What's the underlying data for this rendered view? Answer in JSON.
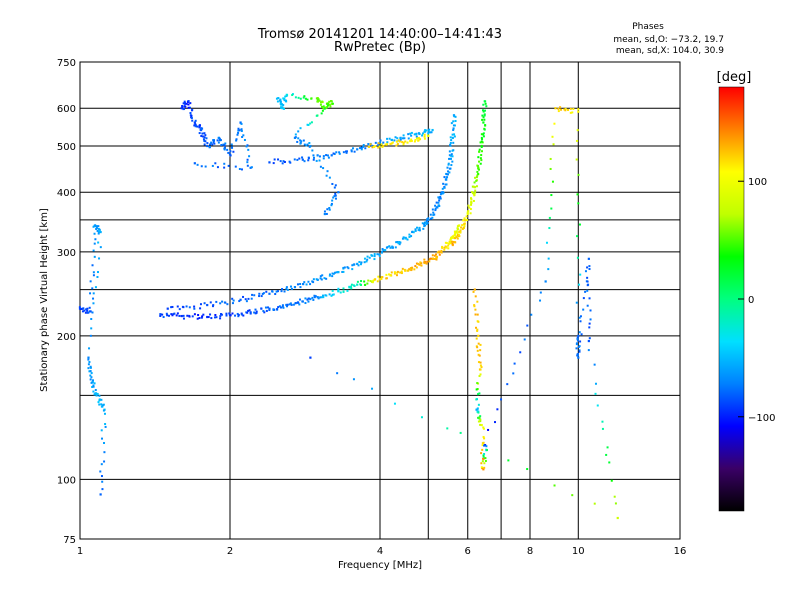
{
  "chart_data": {
    "type": "scatter",
    "title": "Tromsø 20141201 14:40:00–14:41:43",
    "subtitle": "RwPretec (Bp)",
    "xlabel": "Frequency [MHz]",
    "ylabel": "Stationary phase Virtual Height [km]",
    "x_scale": "log",
    "y_scale": "log",
    "xlim": [
      1,
      16
    ],
    "ylim": [
      75,
      750
    ],
    "x_ticks": [
      1,
      2,
      4,
      6,
      8,
      10,
      16
    ],
    "x_tick_labels": [
      "1",
      "2",
      "4",
      "6",
      "8",
      "10",
      "16"
    ],
    "x_grid_minor": [
      5,
      7
    ],
    "y_ticks": [
      75,
      100,
      200,
      300,
      400,
      500,
      600,
      750
    ],
    "y_tick_labels": [
      "75",
      "100",
      "200",
      "300",
      "400",
      "500",
      "600",
      "750"
    ],
    "y_grid_minor": [
      150,
      250,
      350
    ],
    "grid": true,
    "stats": {
      "heading": "Phases",
      "line1": "mean, sd,O: −73.2, 19.7",
      "line2": "mean, sd,X: 104.0, 30.9"
    },
    "colorbar": {
      "label": "[deg]",
      "range": [
        -180,
        180
      ],
      "ticks": [
        100,
        0,
        -100
      ],
      "tick_labels": [
        "100",
        "0",
        "−100"
      ],
      "colors": [
        "#000000",
        "#3a0066",
        "#0000ff",
        "#0080ff",
        "#00e0ff",
        "#00ff80",
        "#00ff00",
        "#c0ff00",
        "#ffff00",
        "#ff8000",
        "#ff0000"
      ]
    },
    "series": [
      {
        "trace": "lower-main",
        "points": [
          [
            1.45,
            222,
            -85
          ],
          [
            1.6,
            220,
            -95
          ],
          [
            1.8,
            219,
            -95
          ],
          [
            2.0,
            221,
            -90
          ],
          [
            2.2,
            224,
            -85
          ],
          [
            2.4,
            228,
            -80
          ],
          [
            2.6,
            232,
            -78
          ],
          [
            2.8,
            236,
            -75
          ],
          [
            3.0,
            241,
            -70
          ],
          [
            3.3,
            248,
            -30
          ],
          [
            3.6,
            256,
            -20
          ],
          [
            3.9,
            262,
            110
          ],
          [
            4.2,
            268,
            120
          ],
          [
            4.5,
            274,
            125
          ],
          [
            4.8,
            282,
            130
          ],
          [
            5.1,
            290,
            135
          ],
          [
            5.3,
            300,
            130
          ],
          [
            5.5,
            312,
            110
          ],
          [
            5.65,
            325,
            100
          ],
          [
            5.75,
            340,
            90
          ]
        ]
      },
      {
        "trace": "upper-main",
        "points": [
          [
            1.5,
            228,
            -90
          ],
          [
            1.8,
            232,
            -85
          ],
          [
            2.1,
            238,
            -80
          ],
          [
            2.4,
            245,
            -78
          ],
          [
            2.7,
            253,
            -70
          ],
          [
            3.0,
            262,
            -65
          ],
          [
            3.3,
            272,
            -60
          ],
          [
            3.6,
            283,
            -60
          ],
          [
            3.9,
            294,
            -55
          ],
          [
            4.2,
            306,
            -60
          ],
          [
            4.5,
            320,
            -55
          ],
          [
            4.8,
            336,
            -60
          ],
          [
            5.0,
            350,
            -65
          ],
          [
            5.2,
            372,
            -70
          ],
          [
            5.35,
            400,
            -68
          ],
          [
            5.45,
            430,
            -65
          ],
          [
            5.55,
            470,
            -60
          ],
          [
            5.6,
            520,
            -55
          ],
          [
            5.63,
            580,
            -60
          ]
        ]
      },
      {
        "trace": "x-branch",
        "points": [
          [
            5.6,
            310,
            130
          ],
          [
            5.8,
            330,
            120
          ],
          [
            5.95,
            350,
            110
          ],
          [
            6.1,
            380,
            90
          ],
          [
            6.2,
            410,
            70
          ],
          [
            6.3,
            450,
            50
          ],
          [
            6.4,
            500,
            40
          ],
          [
            6.45,
            560,
            30
          ],
          [
            6.5,
            620,
            20
          ]
        ]
      },
      {
        "trace": "f-layer-echo",
        "points": [
          [
            2.4,
            462,
            -85
          ],
          [
            2.8,
            468,
            -80
          ],
          [
            3.2,
            478,
            -75
          ],
          [
            3.6,
            492,
            -70
          ],
          [
            4.0,
            508,
            -65
          ],
          [
            4.4,
            520,
            -60
          ],
          [
            4.8,
            530,
            -55
          ],
          [
            5.1,
            540,
            -50
          ]
        ]
      },
      {
        "trace": "f-layer-echo-x",
        "points": [
          [
            3.8,
            498,
            120
          ],
          [
            4.2,
            505,
            115
          ],
          [
            4.6,
            512,
            110
          ],
          [
            5.0,
            525,
            105
          ]
        ]
      },
      {
        "trace": "low-frequency",
        "points": [
          [
            1.0,
            228,
            -90
          ],
          [
            1.05,
            225,
            -85
          ],
          [
            1.07,
            340,
            -60
          ],
          [
            1.1,
            330,
            -55
          ],
          [
            1.04,
            180,
            -70
          ],
          [
            1.06,
            160,
            -60
          ],
          [
            1.08,
            150,
            -55
          ],
          [
            1.12,
            140,
            -50
          ],
          [
            1.1,
            93,
            -80
          ]
        ]
      },
      {
        "trace": "cluster-2mhz",
        "points": [
          [
            1.6,
            600,
            -95
          ],
          [
            1.65,
            620,
            -100
          ],
          [
            1.7,
            560,
            -90
          ],
          [
            1.75,
            540,
            -85
          ],
          [
            1.8,
            500,
            -80
          ],
          [
            1.9,
            520,
            -75
          ],
          [
            2.0,
            480,
            -80
          ],
          [
            2.1,
            560,
            -70
          ],
          [
            2.2,
            450,
            -75
          ],
          [
            1.7,
            460,
            -80
          ]
        ]
      },
      {
        "trace": "cluster-3mhz",
        "points": [
          [
            2.5,
            630,
            -50
          ],
          [
            2.55,
            600,
            -45
          ],
          [
            2.6,
            640,
            -40
          ],
          [
            3.0,
            630,
            60
          ],
          [
            3.1,
            600,
            55
          ],
          [
            3.2,
            620,
            50
          ],
          [
            2.7,
            520,
            -70
          ],
          [
            2.9,
            500,
            -65
          ],
          [
            3.3,
            400,
            -75
          ],
          [
            3.1,
            360,
            -70
          ]
        ]
      },
      {
        "trace": "isolated",
        "points": [
          [
            6.2,
            250,
            130
          ],
          [
            6.3,
            200,
            120
          ],
          [
            6.35,
            170,
            125
          ],
          [
            6.25,
            140,
            -60
          ],
          [
            6.4,
            130,
            100
          ],
          [
            6.45,
            105,
            140
          ],
          [
            6.5,
            118,
            -100
          ],
          [
            8.6,
            260,
            -70
          ],
          [
            9.0,
            600,
            120
          ],
          [
            10.0,
            590,
            110
          ],
          [
            10.0,
            200,
            -80
          ],
          [
            10.0,
            180,
            -75
          ],
          [
            10.5,
            290,
            -80
          ],
          [
            10.5,
            195,
            -85
          ],
          [
            12.0,
            83,
            80
          ],
          [
            2.9,
            180,
            -90
          ]
        ]
      }
    ]
  }
}
